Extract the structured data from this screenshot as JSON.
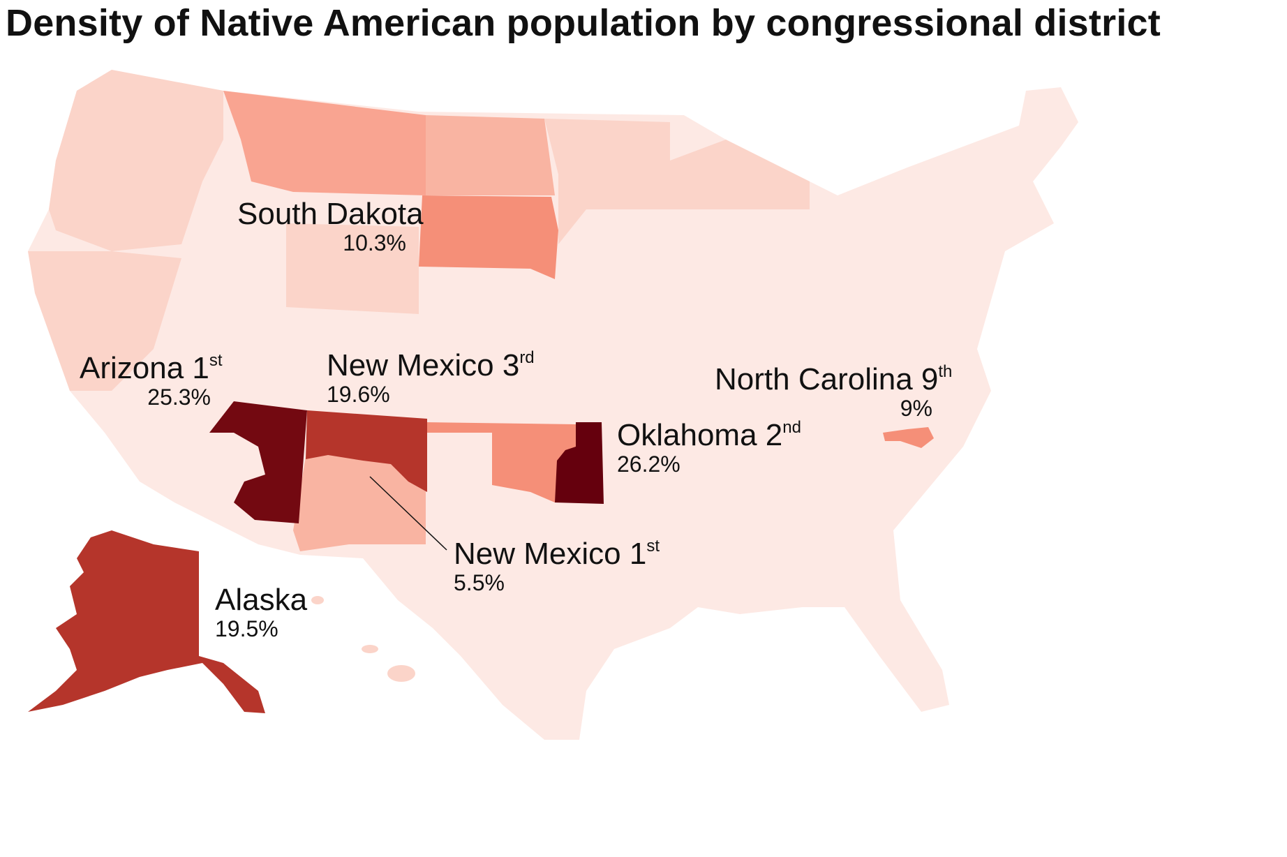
{
  "title": "Density of Native American population by congressional district",
  "colors": {
    "lowest": "#fde9e4",
    "low": "#fbd4c9",
    "mid": "#f9b4a2",
    "high": "#f58f78",
    "very_high": "#b5352b",
    "highest": "#730911",
    "background": "#ffffff"
  },
  "callouts": [
    {
      "id": "south-dakota",
      "name": "South Dakota",
      "ord": "",
      "value": "10.3%"
    },
    {
      "id": "arizona-1",
      "name": "Arizona 1",
      "ord": "st",
      "value": "25.3%"
    },
    {
      "id": "new-mexico-3",
      "name": "New Mexico 3",
      "ord": "rd",
      "value": "19.6%"
    },
    {
      "id": "north-carolina-9",
      "name": "North Carolina 9",
      "ord": "th",
      "value": "9%"
    },
    {
      "id": "oklahoma-2",
      "name": "Oklahoma 2",
      "ord": "nd",
      "value": "26.2%"
    },
    {
      "id": "new-mexico-1",
      "name": "New Mexico 1",
      "ord": "st",
      "value": "5.5%"
    },
    {
      "id": "alaska",
      "name": "Alaska",
      "ord": "",
      "value": "19.5%"
    }
  ]
}
